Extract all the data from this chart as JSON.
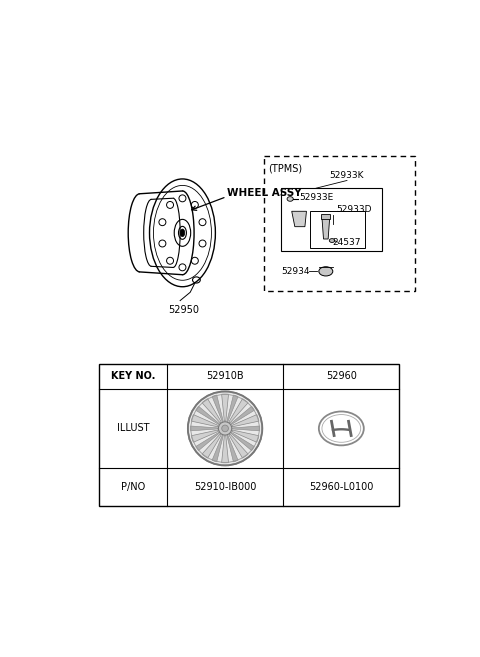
{
  "bg_color": "#ffffff",
  "wheel_assy_label": "WHEEL ASSY",
  "part_52950": "52950",
  "tpms_label": "(TPMS)",
  "part_52933K": "52933K",
  "part_52933E": "52933E",
  "part_52933D": "52933D",
  "part_24537": "24537",
  "part_52934": "52934",
  "table_headers": [
    "KEY NO.",
    "52910B",
    "52960"
  ],
  "table_illust": "ILLUST",
  "table_pno": "P/NO",
  "table_pno1": "52910-IB000",
  "table_pno2": "52960-L0100",
  "line_color": "#000000",
  "text_color": "#000000"
}
